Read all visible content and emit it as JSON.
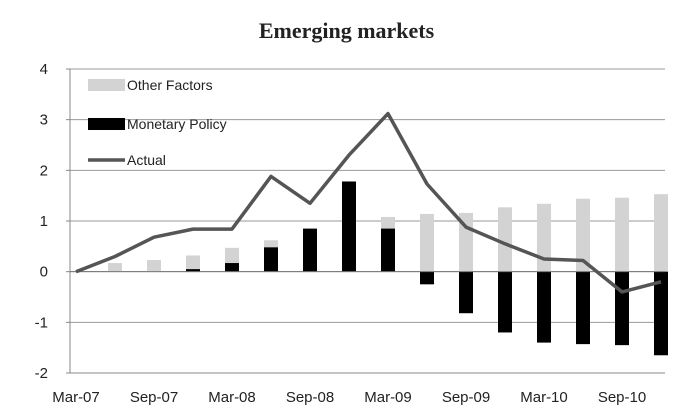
{
  "chart_data": {
    "type": "bar",
    "title": "Emerging markets",
    "xlabel": "",
    "ylabel": "",
    "ylim": [
      -2,
      4
    ],
    "yticks": [
      4,
      3,
      2,
      1,
      0,
      -1,
      -2
    ],
    "grid": true,
    "legend_position": "top-left",
    "x": [
      "Mar-07",
      "Jun-07",
      "Sep-07",
      "Dec-07",
      "Mar-08",
      "Jun-08",
      "Sep-08",
      "Dec-08",
      "Mar-09",
      "Jun-09",
      "Sep-09",
      "Dec-09",
      "Mar-10",
      "Jun-10",
      "Sep-10",
      "Dec-10"
    ],
    "x_tick_labels": [
      "Mar-07",
      "Sep-07",
      "Mar-08",
      "Sep-08",
      "Mar-09",
      "Sep-09",
      "Mar-10",
      "Sep-10"
    ],
    "series": [
      {
        "name": "Other Factors",
        "kind": "bar",
        "color": "#d3d3d3",
        "values": [
          0.0,
          0.17,
          0.23,
          0.32,
          0.47,
          0.62,
          0.77,
          0.92,
          1.08,
          1.14,
          1.16,
          1.27,
          1.34,
          1.44,
          1.46,
          1.53
        ]
      },
      {
        "name": "Monetary Policy",
        "kind": "bar",
        "color": "#000000",
        "values": [
          0.0,
          0.0,
          0.0,
          0.05,
          0.17,
          0.48,
          0.85,
          1.78,
          0.85,
          -0.25,
          -0.82,
          -1.2,
          -1.4,
          -1.43,
          -1.45,
          -1.65
        ]
      },
      {
        "name": "Actual",
        "kind": "line",
        "color": "#555555",
        "values": [
          0.0,
          0.3,
          0.68,
          0.84,
          0.84,
          1.88,
          1.35,
          2.3,
          3.12,
          1.73,
          0.88,
          0.55,
          0.25,
          0.22,
          -0.4,
          -0.2
        ]
      }
    ]
  }
}
